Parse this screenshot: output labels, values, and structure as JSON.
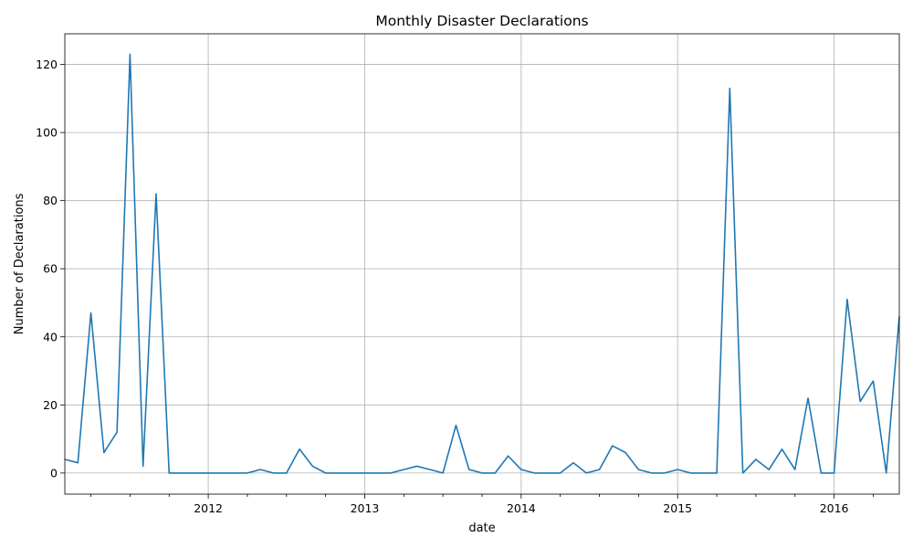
{
  "chart_data": {
    "type": "line",
    "title": "Monthly Disaster Declarations",
    "xlabel": "date",
    "ylabel": "Number of Declarations",
    "grid": true,
    "legend": "none",
    "xlim": [
      "2011-02",
      "2016-06"
    ],
    "ylim": [
      -6.2,
      129
    ],
    "x_major_ticks": [
      {
        "date": "2012-01",
        "label": "2012"
      },
      {
        "date": "2013-01",
        "label": "2013"
      },
      {
        "date": "2014-01",
        "label": "2014"
      },
      {
        "date": "2015-01",
        "label": "2015"
      },
      {
        "date": "2016-01",
        "label": "2016"
      }
    ],
    "x_minor_ticks": [
      "2011-04",
      "2011-07",
      "2011-10",
      "2012-04",
      "2012-07",
      "2012-10",
      "2013-04",
      "2013-07",
      "2013-10",
      "2014-04",
      "2014-07",
      "2014-10",
      "2015-04",
      "2015-07",
      "2015-10",
      "2016-04"
    ],
    "y_ticks": [
      0,
      20,
      40,
      60,
      80,
      100,
      120
    ],
    "series": [
      {
        "color": "#1f77b4",
        "x": [
          "2011-02",
          "2011-03",
          "2011-04",
          "2011-05",
          "2011-06",
          "2011-07",
          "2011-08",
          "2011-09",
          "2011-10",
          "2011-11",
          "2011-12",
          "2012-01",
          "2012-02",
          "2012-03",
          "2012-04",
          "2012-05",
          "2012-06",
          "2012-07",
          "2012-08",
          "2012-09",
          "2012-10",
          "2012-11",
          "2012-12",
          "2013-01",
          "2013-02",
          "2013-03",
          "2013-04",
          "2013-05",
          "2013-06",
          "2013-07",
          "2013-08",
          "2013-09",
          "2013-10",
          "2013-11",
          "2013-12",
          "2014-01",
          "2014-02",
          "2014-03",
          "2014-04",
          "2014-05",
          "2014-06",
          "2014-07",
          "2014-08",
          "2014-09",
          "2014-10",
          "2014-11",
          "2014-12",
          "2015-01",
          "2015-02",
          "2015-03",
          "2015-04",
          "2015-05",
          "2015-06",
          "2015-07",
          "2015-08",
          "2015-09",
          "2015-10",
          "2015-11",
          "2015-12",
          "2016-01",
          "2016-02",
          "2016-03",
          "2016-04",
          "2016-05",
          "2016-06"
        ],
        "values": [
          4,
          3,
          47,
          6,
          12,
          123,
          2,
          82,
          0,
          0,
          0,
          0,
          0,
          0,
          0,
          1,
          0,
          0,
          7,
          2,
          0,
          0,
          0,
          0,
          0,
          0,
          1,
          2,
          1,
          0,
          14,
          1,
          0,
          0,
          5,
          1,
          0,
          0,
          0,
          3,
          0,
          1,
          8,
          6,
          1,
          0,
          0,
          1,
          0,
          0,
          0,
          113,
          0,
          4,
          1,
          7,
          1,
          22,
          0,
          0,
          51,
          21,
          27,
          0,
          46
        ]
      }
    ]
  }
}
